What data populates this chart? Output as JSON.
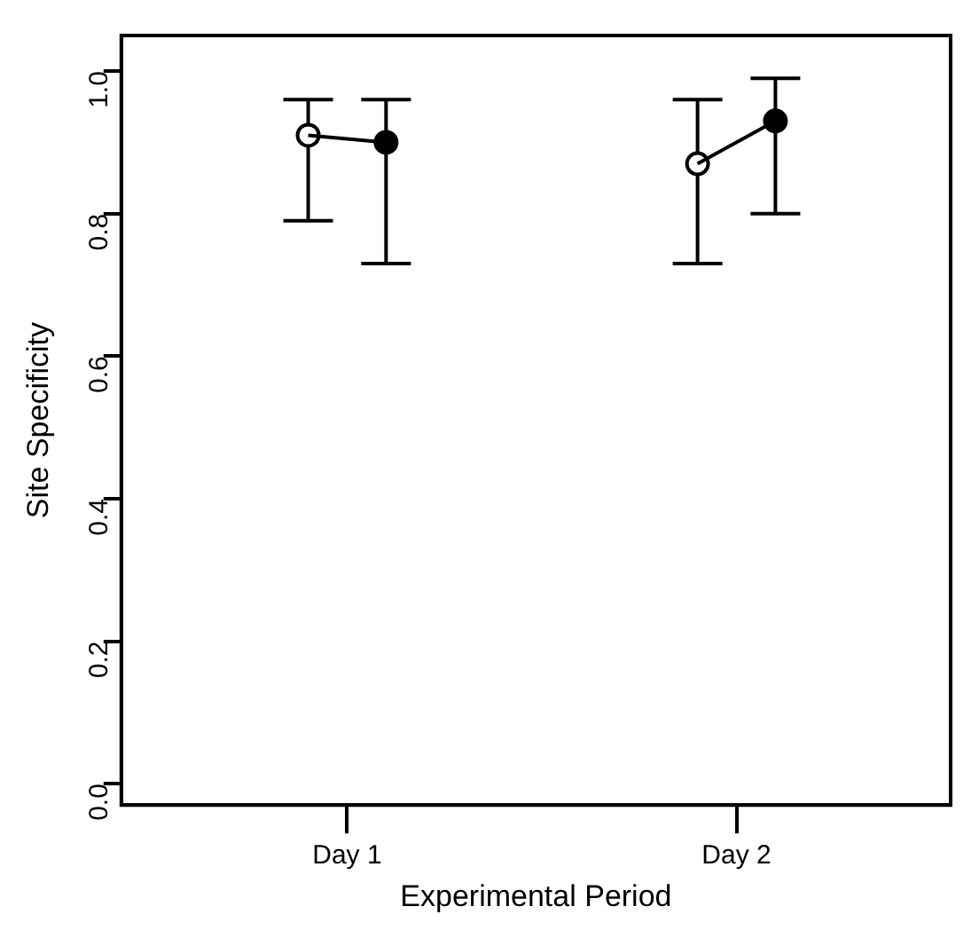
{
  "chart_data": {
    "type": "scatter",
    "xlabel": "Experimental Period",
    "ylabel": "Site Specificity",
    "categories": [
      "Day 1",
      "Day 2"
    ],
    "ylim": [
      -0.03,
      1.05
    ],
    "yticks": [
      {
        "value": 0,
        "label": "0.0"
      },
      {
        "value": 0.2,
        "label": "0.2"
      },
      {
        "value": 0.4,
        "label": "0.4"
      },
      {
        "value": 0.6,
        "label": "0.6"
      },
      {
        "value": 0.8,
        "label": "0.8"
      },
      {
        "value": 1,
        "label": "1.0"
      }
    ],
    "grid": false,
    "legend": false,
    "marker": "circle",
    "series": [
      {
        "type": "scatter",
        "color": "#000000",
        "colors": [
          "#ffffff",
          "#ffffff"
        ],
        "values": [
          0.91,
          0.87
        ],
        "errors": [
          [
            0.79,
            0.96
          ],
          [
            0.73,
            0.96
          ]
        ]
      },
      {
        "type": "scatter",
        "color": "#000000",
        "colors": [
          "#000000",
          "#000000"
        ],
        "values": [
          0.9,
          0.93
        ],
        "errors": [
          [
            0.73,
            0.96
          ],
          [
            0.8,
            0.99
          ]
        ]
      }
    ]
  }
}
